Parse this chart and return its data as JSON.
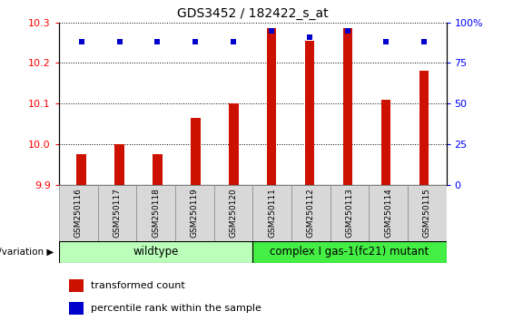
{
  "title": "GDS3452 / 182422_s_at",
  "samples": [
    "GSM250116",
    "GSM250117",
    "GSM250118",
    "GSM250119",
    "GSM250120",
    "GSM250111",
    "GSM250112",
    "GSM250113",
    "GSM250114",
    "GSM250115"
  ],
  "bar_values": [
    9.975,
    10.0,
    9.975,
    10.065,
    10.1,
    10.285,
    10.255,
    10.285,
    10.11,
    10.18
  ],
  "percentile_values": [
    88,
    88,
    88,
    88,
    88,
    95,
    91,
    95,
    88,
    88
  ],
  "ylim_left": [
    9.9,
    10.3
  ],
  "ylim_right": [
    0,
    100
  ],
  "yticks_left": [
    9.9,
    10.0,
    10.1,
    10.2,
    10.3
  ],
  "yticks_right": [
    0,
    25,
    50,
    75,
    100
  ],
  "bar_color": "#cc1100",
  "percentile_color": "#0000cc",
  "bar_width": 0.25,
  "wildtype_count": 5,
  "wildtype_color": "#bbffbb",
  "mutant_color": "#44ee44",
  "wildtype_label": "wildtype",
  "mutant_label": "complex I gas-1(fc21) mutant",
  "group_prefix": "genotype/variation",
  "legend_items": [
    {
      "color": "#cc1100",
      "label": "transformed count"
    },
    {
      "color": "#0000cc",
      "label": "percentile rank within the sample"
    }
  ],
  "grid_linestyle": "dotted",
  "tick_cell_color": "#d8d8d8",
  "tick_cell_edge": "#888888"
}
